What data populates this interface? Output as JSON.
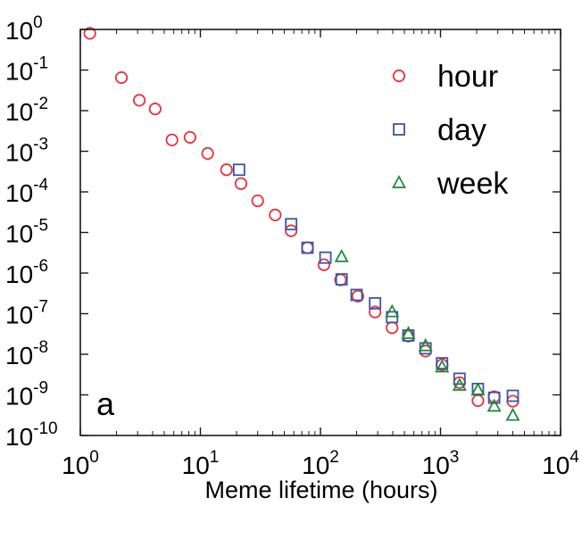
{
  "chart_data": {
    "type": "scatter",
    "x_scale": "log",
    "y_scale": "log",
    "xlabel": "Meme lifetime (hours)",
    "ylabel": "",
    "xlim": [
      1,
      10000
    ],
    "ylim": [
      1e-10,
      1
    ],
    "x_ticks": [
      {
        "base": "10",
        "exp": "0",
        "value": 1
      },
      {
        "base": "10",
        "exp": "1",
        "value": 10
      },
      {
        "base": "10",
        "exp": "2",
        "value": 100
      },
      {
        "base": "10",
        "exp": "3",
        "value": 1000
      },
      {
        "base": "10",
        "exp": "4",
        "value": 10000
      }
    ],
    "y_ticks": [
      {
        "base": "10",
        "exp": "0",
        "value": 1
      },
      {
        "base": "10",
        "exp": "-1",
        "value": 0.1
      },
      {
        "base": "10",
        "exp": "-2",
        "value": 0.01
      },
      {
        "base": "10",
        "exp": "-3",
        "value": 0.001
      },
      {
        "base": "10",
        "exp": "-4",
        "value": 0.0001
      },
      {
        "base": "10",
        "exp": "-5",
        "value": 1e-05
      },
      {
        "base": "10",
        "exp": "-6",
        "value": 1e-06
      },
      {
        "base": "10",
        "exp": "-7",
        "value": 1e-07
      },
      {
        "base": "10",
        "exp": "-8",
        "value": 1e-08
      },
      {
        "base": "10",
        "exp": "-9",
        "value": 1e-09
      },
      {
        "base": "10",
        "exp": "-10",
        "value": 1e-10
      }
    ],
    "grid": false,
    "legend_position": "top-right",
    "panel_label": "a",
    "series": [
      {
        "name": "hour",
        "marker": "circle",
        "color": "#e8333b",
        "points": [
          [
            1.2,
            0.8
          ],
          [
            2.2,
            0.065
          ],
          [
            3.1,
            0.018
          ],
          [
            4.2,
            0.011
          ],
          [
            5.8,
            0.0019
          ],
          [
            8.2,
            0.0022
          ],
          [
            11.5,
            0.00088
          ],
          [
            16.5,
            0.00035
          ],
          [
            21.8,
            0.00016
          ],
          [
            30,
            6e-05
          ],
          [
            42,
            2.7e-05
          ],
          [
            57,
            1.1e-05
          ],
          [
            78,
            4.2e-06
          ],
          [
            107,
            1.6e-06
          ],
          [
            147,
            6.8e-07
          ],
          [
            205,
            2.7e-07
          ],
          [
            285,
            1.1e-07
          ],
          [
            395,
            4.5e-08
          ],
          [
            540,
            2.8e-08
          ],
          [
            750,
            1.2e-08
          ],
          [
            1030,
            5.5e-09
          ],
          [
            1440,
            2e-09
          ],
          [
            2050,
            7.2e-10
          ],
          [
            2800,
            9e-10
          ],
          [
            4000,
            7e-10
          ]
        ]
      },
      {
        "name": "day",
        "marker": "square",
        "color": "#3a56a8",
        "points": [
          [
            21,
            0.00035
          ],
          [
            57,
            1.6e-05
          ],
          [
            78,
            4.2e-06
          ],
          [
            110,
            2.4e-06
          ],
          [
            150,
            7e-07
          ],
          [
            200,
            2.9e-07
          ],
          [
            285,
            1.8e-07
          ],
          [
            395,
            8.2e-08
          ],
          [
            540,
            2.9e-08
          ],
          [
            750,
            1.4e-08
          ],
          [
            1030,
            6e-09
          ],
          [
            1440,
            2.5e-09
          ],
          [
            2050,
            1.4e-09
          ],
          [
            2800,
            8.5e-10
          ],
          [
            4000,
            9.5e-10
          ]
        ]
      },
      {
        "name": "week",
        "marker": "triangle",
        "color": "#1f8a3a",
        "points": [
          [
            150,
            2.5e-06
          ],
          [
            395,
            1.1e-07
          ],
          [
            540,
            3.2e-08
          ],
          [
            750,
            1.6e-08
          ],
          [
            1030,
            4.8e-09
          ],
          [
            1440,
            1.7e-09
          ],
          [
            2050,
            1.3e-09
          ],
          [
            2800,
            5.2e-10
          ],
          [
            4000,
            3.1e-10
          ]
        ]
      }
    ]
  }
}
